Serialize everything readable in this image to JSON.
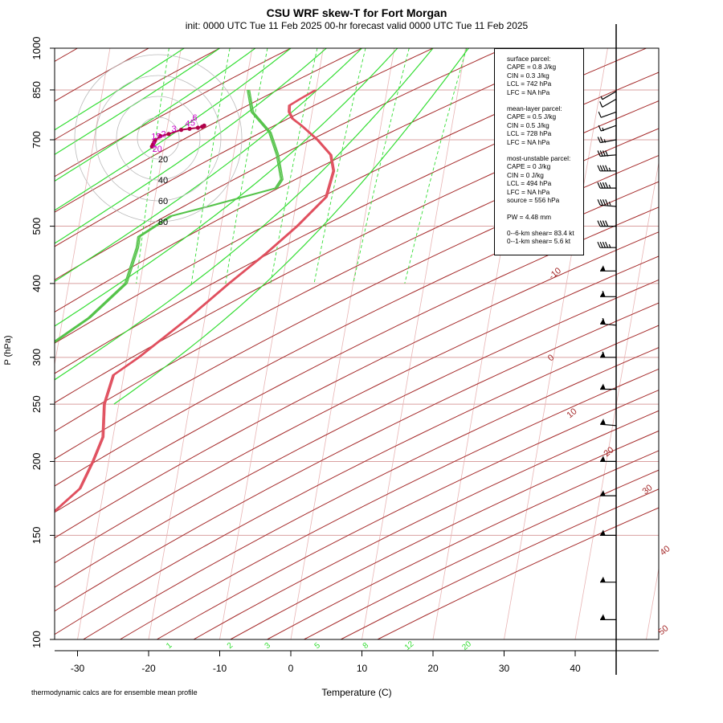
{
  "title": "CSU WRF skew-T for Fort Morgan",
  "subtitle": "init: 0000 UTC Tue 11 Feb 2025     00-hr forecast valid 0000 UTC Tue 11 Feb 2025",
  "footnote": "thermodynamic calcs are for ensemble mean profile",
  "colors": {
    "temperature": "#e0505f",
    "dewpoint": "#55c34a",
    "isotherm": "#e8b4b4",
    "isobar": "#d9a0a0",
    "dry_adiabat": "#a52a2a",
    "moist_adiabat": "#33dd33",
    "mixing_ratio": "#33dd33",
    "wind_barb": "#000000",
    "hodograph_trace": "#b0004b",
    "hodograph_label": "#cc00cc"
  },
  "info": {
    "surface": {
      "heading": "surface parcel:",
      "cape": "CAPE = 0.8 J/kg",
      "cin": "CIN = 0.3 J/kg",
      "lcl": "LCL = 742 hPa",
      "lfc": "LFC = NA hPa"
    },
    "mixed": {
      "heading": "mean-layer parcel:",
      "cape": "CAPE = 0.5 J/kg",
      "cin": "CIN = 0.5 J/kg",
      "lcl": "LCL = 728 hPa",
      "lfc": "LFC = NA hPa"
    },
    "unstable": {
      "heading": "most-unstable parcel:",
      "cape": "CAPE = 0 J/kg",
      "cin": "CIN = 0 J/kg",
      "lcl": "LCL = 494 hPa",
      "lfc": "LFC = NA hPa",
      "source": "source = 556 hPa"
    },
    "pw": "PW =  4.48 mm",
    "shear6": "0--6-km shear= 83.4 kt",
    "shear1": "0--1-km shear= 5.6 kt"
  },
  "chart_data": {
    "type": "skew-t",
    "title": "CSU WRF skew-T for Fort Morgan",
    "xlabel": "Temperature (C)",
    "ylabel": "P (hPa)",
    "x_ticks": [
      -30,
      -20,
      -10,
      0,
      10,
      20,
      30,
      40
    ],
    "x_tick_labels": [
      "-30",
      "-20",
      "-10",
      "0",
      "10",
      "20",
      "30",
      "40"
    ],
    "xlim": [
      -33,
      45
    ],
    "y_scale": "log",
    "ylim": [
      1000,
      100
    ],
    "y_ticks": [
      100,
      150,
      200,
      250,
      300,
      400,
      500,
      700,
      850,
      1000
    ],
    "y_tick_labels": [
      "100",
      "150",
      "200",
      "250",
      "300",
      "400",
      "500",
      "700",
      "850",
      "1000"
    ],
    "isotherm_labels": [
      {
        "t": -10,
        "text": "-10"
      },
      {
        "t": 0,
        "text": "0"
      },
      {
        "t": 10,
        "text": "10"
      },
      {
        "t": 20,
        "text": "20"
      },
      {
        "t": 30,
        "text": "30"
      },
      {
        "t": 40,
        "text": "40"
      },
      {
        "t": 50,
        "text": "50"
      }
    ],
    "mixing_ratio_labels": [
      "1",
      "2",
      "3",
      "5",
      "8",
      "12",
      "20"
    ],
    "mixing_ratio_values": [
      1,
      2,
      3,
      5,
      8,
      12,
      20
    ],
    "moist_adiabat_base_temps": [
      -15,
      -10,
      -5,
      0,
      5,
      10,
      15,
      20,
      25
    ],
    "temperature_profile": [
      {
        "p": 850,
        "t": 2.5
      },
      {
        "p": 820,
        "t": 0.0
      },
      {
        "p": 800,
        "t": -1.6
      },
      {
        "p": 780,
        "t": -1.8
      },
      {
        "p": 760,
        "t": -1.5
      },
      {
        "p": 740,
        "t": -0.4
      },
      {
        "p": 700,
        "t": 1.5
      },
      {
        "p": 660,
        "t": 3.0
      },
      {
        "p": 620,
        "t": 3.0
      },
      {
        "p": 560,
        "t": 1.3
      },
      {
        "p": 500,
        "t": -3.5
      },
      {
        "p": 450,
        "t": -8.5
      },
      {
        "p": 400,
        "t": -14.5
      },
      {
        "p": 350,
        "t": -21.0
      },
      {
        "p": 300,
        "t": -29.0
      },
      {
        "p": 280,
        "t": -33.0
      },
      {
        "p": 250,
        "t": -35.0
      },
      {
        "p": 220,
        "t": -36.0
      },
      {
        "p": 200,
        "t": -38.0
      },
      {
        "p": 180,
        "t": -40.5
      },
      {
        "p": 160,
        "t": -46.0
      },
      {
        "p": 140,
        "t": -51.0
      },
      {
        "p": 120,
        "t": -56.5
      },
      {
        "p": 103,
        "t": -60.0
      }
    ],
    "dewpoint_profile": [
      {
        "p": 850,
        "t": -7.0
      },
      {
        "p": 780,
        "t": -7.0
      },
      {
        "p": 720,
        "t": -5.0
      },
      {
        "p": 660,
        "t": -4.5
      },
      {
        "p": 600,
        "t": -4.5
      },
      {
        "p": 580,
        "t": -5.5
      },
      {
        "p": 540,
        "t": -15.5
      },
      {
        "p": 520,
        "t": -21.0
      },
      {
        "p": 480,
        "t": -26.0
      },
      {
        "p": 460,
        "t": -26.5
      },
      {
        "p": 400,
        "t": -29.0
      },
      {
        "p": 350,
        "t": -35.0
      },
      {
        "p": 300,
        "t": -44.0
      },
      {
        "p": 250,
        "t": -56.0
      },
      {
        "p": 200,
        "t": -60.0
      },
      {
        "p": 190,
        "t": -61.0
      }
    ],
    "wind_profile": [
      {
        "p": 845,
        "speed": 5,
        "dir": 240
      },
      {
        "p": 820,
        "speed": 10,
        "dir": 240
      },
      {
        "p": 780,
        "speed": 10,
        "dir": 250
      },
      {
        "p": 740,
        "speed": 15,
        "dir": 250
      },
      {
        "p": 700,
        "speed": 25,
        "dir": 260
      },
      {
        "p": 660,
        "speed": 40,
        "dir": 265
      },
      {
        "p": 620,
        "speed": 45,
        "dir": 270
      },
      {
        "p": 580,
        "speed": 45,
        "dir": 270
      },
      {
        "p": 540,
        "speed": 45,
        "dir": 275
      },
      {
        "p": 500,
        "speed": 40,
        "dir": 270
      },
      {
        "p": 460,
        "speed": 45,
        "dir": 270
      },
      {
        "p": 420,
        "speed": 55,
        "dir": 270
      },
      {
        "p": 380,
        "speed": 60,
        "dir": 270
      },
      {
        "p": 340,
        "speed": 60,
        "dir": 275
      },
      {
        "p": 300,
        "speed": 60,
        "dir": 270
      },
      {
        "p": 265,
        "speed": 55,
        "dir": 270
      },
      {
        "p": 230,
        "speed": 55,
        "dir": 275
      },
      {
        "p": 200,
        "speed": 55,
        "dir": 270
      },
      {
        "p": 175,
        "speed": 55,
        "dir": 270
      },
      {
        "p": 150,
        "speed": 55,
        "dir": 270
      },
      {
        "p": 125,
        "speed": 55,
        "dir": 270
      },
      {
        "p": 108,
        "speed": 55,
        "dir": 270
      }
    ],
    "hodograph": {
      "rings_labels": [
        "20",
        "40",
        "60",
        "80"
      ],
      "ring_values": [
        20,
        40,
        60,
        80
      ],
      "points": [
        {
          "u": -6,
          "v": -8
        },
        {
          "u": -5,
          "v": -6
        },
        {
          "u": -4,
          "v": -4
        },
        {
          "u": -3,
          "v": -2
        },
        {
          "u": 2,
          "v": 2
        },
        {
          "u": 10,
          "v": 4
        },
        {
          "u": 22,
          "v": 8
        },
        {
          "u": 30,
          "v": 9
        },
        {
          "u": 38,
          "v": 10
        },
        {
          "u": 42,
          "v": 11
        },
        {
          "u": 44,
          "v": 12
        }
      ],
      "labels": [
        {
          "u": 15,
          "v": 6,
          "text": "3"
        },
        {
          "u": 28,
          "v": 11,
          "text": "4"
        },
        {
          "u": 33,
          "v": 12,
          "text": "5"
        },
        {
          "u": 35,
          "v": 17,
          "text": "6"
        },
        {
          "u": 5,
          "v": 1,
          "text": "2"
        },
        {
          "u": -2,
          "v": -1,
          "text": "15"
        },
        {
          "u": -4,
          "v": -9,
          "text": "1"
        },
        {
          "u": -1,
          "v": -13,
          "text": "20"
        }
      ]
    }
  }
}
